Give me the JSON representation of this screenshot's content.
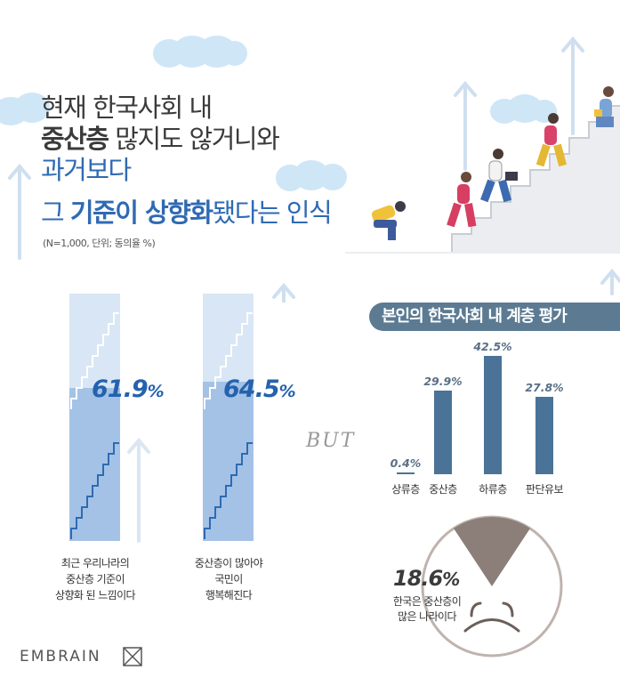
{
  "header": {
    "line1": "현재 한국사회 내",
    "line2_bold": "중산층",
    "line2_rest": " 많지도 않거니와",
    "line3": "과거보다",
    "line4_a": "그 ",
    "line4_bold1": "기준이 상향화",
    "line4_b": "됐다는 인식",
    "subtitle": "(N=1,000, 단위; 동의율 %)"
  },
  "left_section": {
    "items": [
      {
        "value": "61.9",
        "unit": "%",
        "caption": [
          "최근 우리나라의",
          "중산층 기준이",
          "상향화 된 느낌이다"
        ]
      },
      {
        "value": "64.5",
        "unit": "%",
        "caption": [
          "중산층이 많아야",
          "국민이",
          "행복해진다"
        ]
      }
    ]
  },
  "but_text": "BUT",
  "right_section": {
    "title": "본인의 한국사회 내 계층 평가"
  },
  "chart_data": [
    {
      "type": "bar",
      "title": "",
      "categories": [
        "최근 우리나라의 중산층 기준이 상향화 된 느낌이다",
        "중산층이 많아야 국민이 행복해진다"
      ],
      "values": [
        61.9,
        64.5
      ],
      "ylim": [
        0,
        100
      ],
      "xlabel": "",
      "ylabel": ""
    },
    {
      "type": "bar",
      "title": "본인의 한국사회 내 계층 평가",
      "categories": [
        "상류층",
        "중산층",
        "하류층",
        "판단유보"
      ],
      "values": [
        0.4,
        29.9,
        42.5,
        27.8
      ],
      "value_labels": [
        "0.4%",
        "29.9%",
        "42.5%",
        "27.8%"
      ],
      "ylim": [
        0,
        42.5
      ],
      "xlabel": "",
      "ylabel": ""
    },
    {
      "type": "pie",
      "title": "",
      "categories": [
        "한국은 중산층이 많은 나라이다"
      ],
      "values": [
        18.6
      ],
      "value_labels": [
        "18.6%"
      ]
    }
  ],
  "bottom": {
    "value": "18.6",
    "unit": "%",
    "caption": [
      "한국은 중산층이",
      "많은 나라이다"
    ]
  },
  "logo": {
    "text": "EMBRAIN"
  },
  "colors": {
    "title_blue": "#2f6ab3",
    "bar_blue": "#4a7397",
    "pill_bg": "#5c7b93",
    "stair_light": "#d9e6f5",
    "stair_fill": "#a4c2e6",
    "cloud": "#cfe6f7",
    "face": "#bfb3ae",
    "wedge": "#8c7f79"
  }
}
